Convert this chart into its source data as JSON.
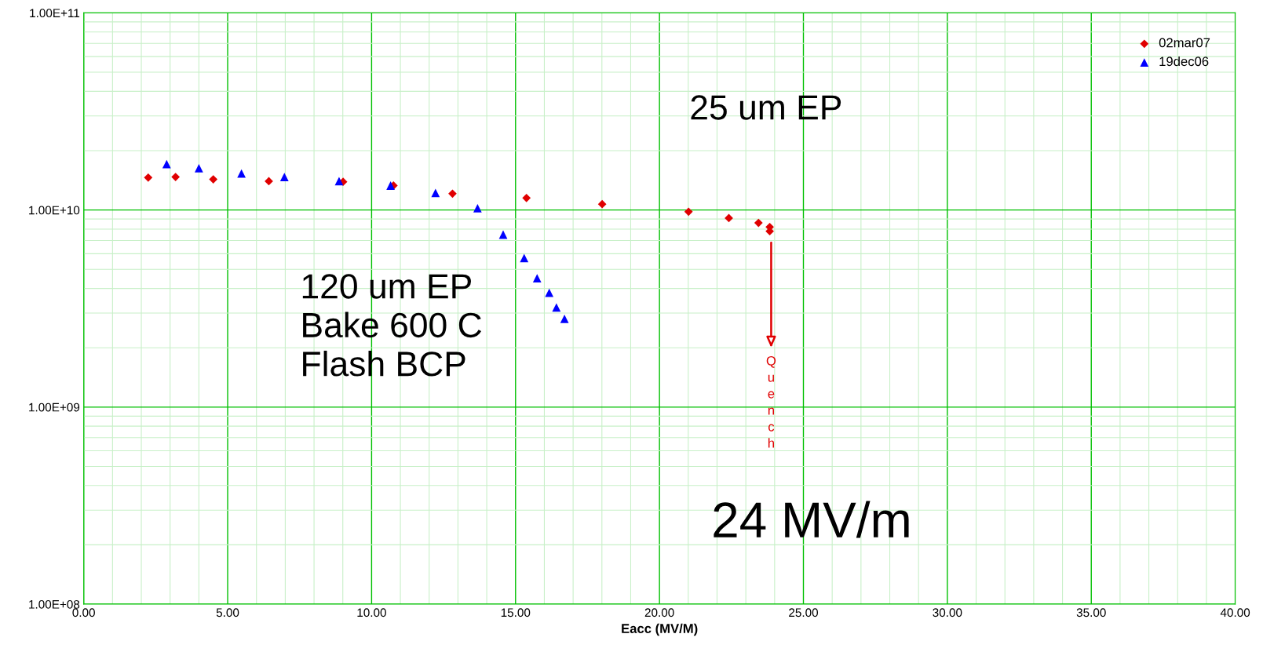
{
  "chart_data": {
    "type": "scatter",
    "xlabel": "Eacc (MV/M)",
    "log": "y",
    "grid": true,
    "legend": "top right",
    "xlim": [
      0,
      40
    ],
    "xticks": [
      {
        "value": 0,
        "label": "0.00"
      },
      {
        "value": 5,
        "label": "5.00"
      },
      {
        "value": 10,
        "label": "10.00"
      },
      {
        "value": 15,
        "label": "15.00"
      },
      {
        "value": 20,
        "label": "20.00"
      },
      {
        "value": 25,
        "label": "25.00"
      },
      {
        "value": 30,
        "label": "30.00"
      },
      {
        "value": 35,
        "label": "35.00"
      },
      {
        "value": 40,
        "label": "40.00"
      }
    ],
    "ylim": [
      100000000.0,
      100000000000.0
    ],
    "yticks": [
      {
        "value": 100000000.0,
        "label": "1.00E+08"
      },
      {
        "value": 1000000000.0,
        "label": "1.00E+09"
      },
      {
        "value": 10000000000.0,
        "label": "1.00E+10"
      },
      {
        "value": 100000000000.0,
        "label": "1.00E+11"
      }
    ],
    "series": [
      {
        "name": "02mar07",
        "color": "#e00000",
        "marker": "diamond",
        "x": [
          2.24,
          3.19,
          4.5,
          6.43,
          9.01,
          10.76,
          12.81,
          15.38,
          18.01,
          21.01,
          22.41,
          23.44,
          23.83,
          23.83
        ],
        "values": [
          14600000000.0,
          14700000000.0,
          14300000000.0,
          14000000000.0,
          13900000000.0,
          13300000000.0,
          12100000000.0,
          11500000000.0,
          10700000000.0,
          9800000000.0,
          9100000000.0,
          8600000000.0,
          8200000000.0,
          7800000000.0
        ]
      },
      {
        "name": "19dec06",
        "color": "#0000ff",
        "marker": "triangle",
        "x": [
          2.88,
          4.0,
          5.48,
          6.97,
          8.87,
          10.66,
          12.22,
          13.68,
          14.57,
          15.3,
          15.75,
          16.17,
          16.42,
          16.7
        ],
        "values": [
          17100000000.0,
          16300000000.0,
          15300000000.0,
          14700000000.0,
          14000000000.0,
          13300000000.0,
          12200000000.0,
          10200000000.0,
          7500000000.0,
          5700000000.0,
          4500000000.0,
          3800000000.0,
          3200000000.0,
          2800000000.0
        ]
      }
    ],
    "annotations": [
      "25 um EP",
      "120 um EP\nBake 600 C\nFlash BCP",
      "24 MV/m",
      "Quench"
    ]
  }
}
